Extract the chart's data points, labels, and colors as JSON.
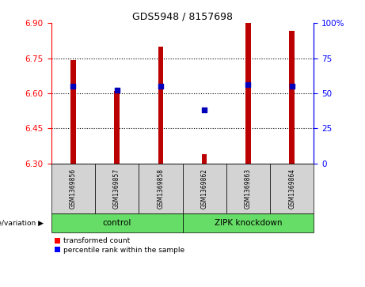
{
  "title": "GDS5948 / 8157698",
  "samples": [
    "GSM1369856",
    "GSM1369857",
    "GSM1369858",
    "GSM1369862",
    "GSM1369863",
    "GSM1369864"
  ],
  "bar_bottom": 6.3,
  "bar_tops": [
    6.74,
    6.61,
    6.8,
    6.34,
    6.9,
    6.865
  ],
  "percentile_ranks": [
    55,
    52,
    55,
    38,
    56,
    55
  ],
  "ylim_left": [
    6.3,
    6.9
  ],
  "ylim_right": [
    0,
    100
  ],
  "yticks_left": [
    6.3,
    6.45,
    6.6,
    6.75,
    6.9
  ],
  "yticks_right": [
    0,
    25,
    50,
    75,
    100
  ],
  "bar_color": "#bb0000",
  "dot_color": "#0000bb",
  "bar_width": 0.12,
  "legend_items": [
    "transformed count",
    "percentile rank within the sample"
  ],
  "group_control_label": "control",
  "group_zipk_label": "ZIPK knockdown",
  "genotype_label": "genotype/variation",
  "gray_color": "#d3d3d3",
  "green_color": "#66dd66"
}
